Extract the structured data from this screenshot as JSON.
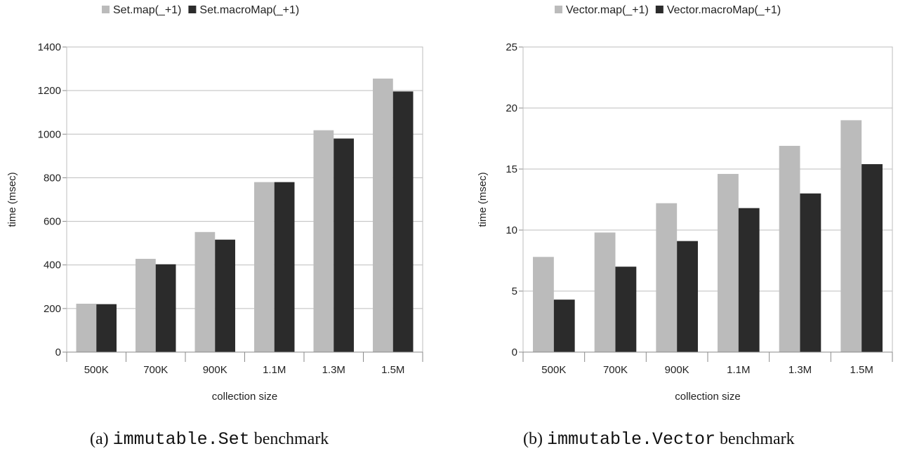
{
  "chart_data": [
    {
      "type": "bar",
      "categories": [
        "500K",
        "700K",
        "900K",
        "1.1M",
        "1.3M",
        "1.5M"
      ],
      "series": [
        {
          "name": "Set.map(_+1)",
          "values": [
            222,
            428,
            551,
            780,
            1018,
            1255
          ],
          "color": "#bbbbbb"
        },
        {
          "name": "Set.macroMap(_+1)",
          "values": [
            220,
            403,
            516,
            780,
            980,
            1196
          ],
          "color": "#2b2b2b"
        }
      ],
      "xlabel": "collection size",
      "ylabel": "time (msec)",
      "ylim": [
        0,
        1400
      ],
      "yticks": [
        0,
        200,
        400,
        600,
        800,
        1000,
        1200,
        1400
      ],
      "grid": true,
      "legend": "top",
      "caption": {
        "prefix": "(a)",
        "code": "immutable.Set",
        "suffix": "benchmark"
      }
    },
    {
      "type": "bar",
      "categories": [
        "500K",
        "700K",
        "900K",
        "1.1M",
        "1.3M",
        "1.5M"
      ],
      "series": [
        {
          "name": "Vector.map(_+1)",
          "values": [
            7.8,
            9.8,
            12.2,
            14.6,
            16.9,
            19.0
          ],
          "color": "#bbbbbb"
        },
        {
          "name": "Vector.macroMap(_+1)",
          "values": [
            4.3,
            7.0,
            9.1,
            11.8,
            13.0,
            15.4
          ],
          "color": "#2b2b2b"
        }
      ],
      "xlabel": "collection size",
      "ylabel": "time (msec)",
      "ylim": [
        0,
        25
      ],
      "yticks": [
        0,
        5,
        10,
        15,
        20,
        25
      ],
      "grid": true,
      "legend": "top",
      "caption": {
        "prefix": "(b)",
        "code": "immutable.Vector",
        "suffix": "benchmark"
      }
    }
  ]
}
